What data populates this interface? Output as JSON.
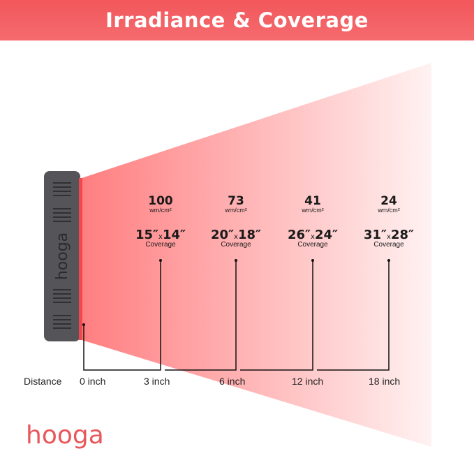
{
  "title": "Irradiance & Coverage",
  "device_label": "hooga",
  "stats": [
    {
      "irradiance": "100",
      "unit": "wm/cm²",
      "w": "15″",
      "h": "14″",
      "coverage": "Coverage"
    },
    {
      "irradiance": "73",
      "unit": "wm/cm²",
      "w": "20″",
      "h": "18″",
      "coverage": "Coverage"
    },
    {
      "irradiance": "41",
      "unit": "wm/cm²",
      "w": "26″",
      "h": "24″",
      "coverage": "Coverage"
    },
    {
      "irradiance": "24",
      "unit": "wm/cm²",
      "w": "31″",
      "h": "28″",
      "coverage": "Coverage"
    }
  ],
  "times_sign": "x",
  "distance_label": "Distance",
  "distances": [
    "0 inch",
    "3 inch",
    "6 inch",
    "12 inch",
    "18 inch"
  ],
  "logo": "hooga",
  "colors": {
    "header": "#f2575b",
    "beam_start": "#ff7e80",
    "beam_end": "#fff0f0",
    "device": "#555459"
  }
}
